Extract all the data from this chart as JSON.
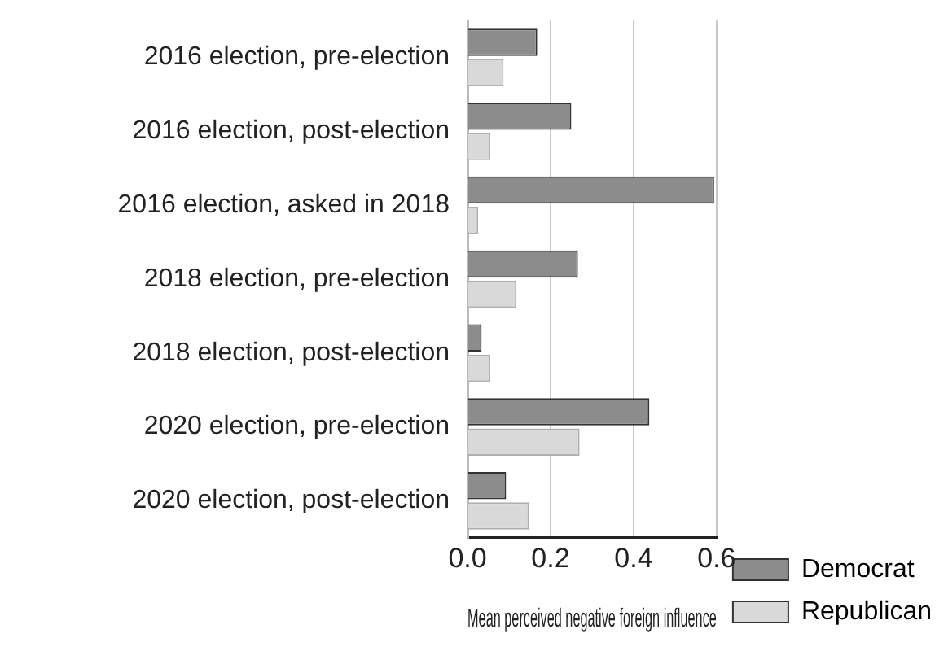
{
  "chart_data": {
    "type": "bar",
    "orientation": "horizontal",
    "xlabel": "Mean perceived negative foreign influence",
    "categories": [
      "2016 election, pre-election",
      "2016 election, post-election",
      "2016 election, asked in 2018",
      "2018 election, pre-election",
      "2018 election, post-election",
      "2020 election, pre-election",
      "2020 election, post-election"
    ],
    "series": [
      {
        "name": "Democrat",
        "color": "#8c8c8c",
        "values": [
          0.168,
          0.25,
          0.594,
          0.266,
          0.034,
          0.438,
          0.093
        ]
      },
      {
        "name": "Republican",
        "color": "#d9d9d9",
        "values": [
          0.087,
          0.055,
          0.026,
          0.118,
          0.055,
          0.27,
          0.148
        ]
      }
    ],
    "xlim": [
      0,
      0.6
    ],
    "xticks": [
      {
        "value": 0,
        "label": "0.0"
      },
      0.2,
      0.4,
      0.6
    ],
    "grid": "x",
    "legend": "bottom right"
  }
}
